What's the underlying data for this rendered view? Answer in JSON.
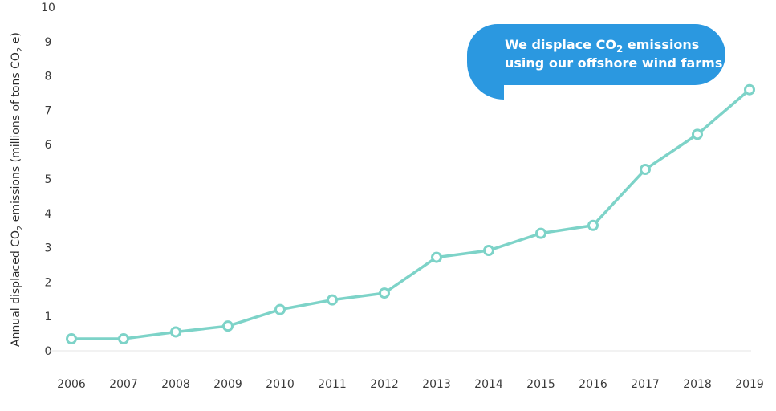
{
  "chart_data": {
    "type": "line",
    "title": "",
    "xlabel": "",
    "ylabel": {
      "prefix": "Annual displaced CO",
      "sub1": "2",
      "middle": " emissions (millions of tons CO",
      "sub2": "2",
      "suffix": " e)"
    },
    "x": [
      "2006",
      "2007",
      "2008",
      "2009",
      "2010",
      "2011",
      "2012",
      "2013",
      "2014",
      "2015",
      "2016",
      "2017",
      "2018",
      "2019"
    ],
    "ylim": [
      0,
      10
    ],
    "yticks": [
      "0",
      "1",
      "2",
      "3",
      "4",
      "5",
      "6",
      "7",
      "8",
      "9",
      "10"
    ],
    "grid": false,
    "series": [
      {
        "values": [
          0.35,
          0.35,
          0.55,
          0.72,
          1.2,
          1.48,
          1.68,
          2.72,
          2.92,
          3.42,
          3.65,
          5.28,
          6.3,
          7.6
        ],
        "color": "#7dd3c8"
      }
    ],
    "annotation": {
      "line1_prefix": "We displace CO",
      "line1_sub": "2",
      "line1_suffix": " emissions",
      "line2": "using our offshore wind farms.",
      "color": "#2b98e0"
    }
  }
}
